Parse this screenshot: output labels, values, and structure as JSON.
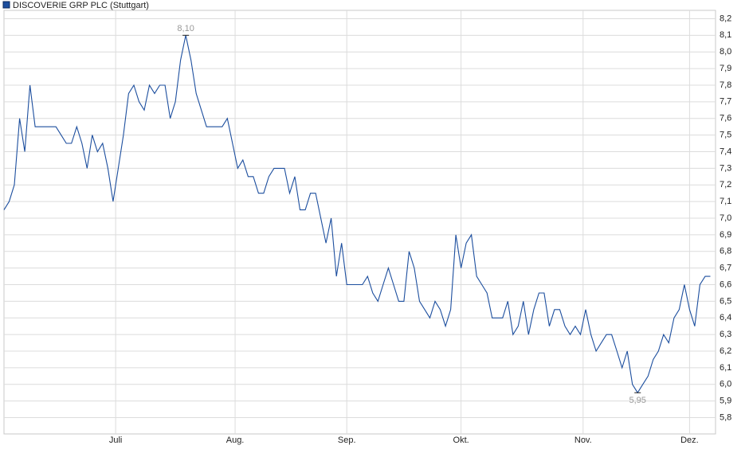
{
  "chart_data": {
    "type": "line",
    "series": [
      {
        "name": "DISCOVERIE GRP PLC (Stuttgart)",
        "color": "#1c4e9e",
        "values": [
          7.05,
          7.1,
          7.2,
          7.6,
          7.4,
          7.8,
          7.55,
          7.55,
          7.55,
          7.55,
          7.55,
          7.5,
          7.45,
          7.45,
          7.55,
          7.45,
          7.3,
          7.5,
          7.4,
          7.45,
          7.3,
          7.1,
          7.3,
          7.5,
          7.75,
          7.8,
          7.7,
          7.65,
          7.8,
          7.75,
          7.8,
          7.8,
          7.6,
          7.7,
          7.95,
          8.1,
          7.95,
          7.75,
          7.65,
          7.55,
          7.55,
          7.55,
          7.55,
          7.6,
          7.45,
          7.3,
          7.35,
          7.25,
          7.25,
          7.15,
          7.15,
          7.25,
          7.3,
          7.3,
          7.3,
          7.15,
          7.25,
          7.05,
          7.05,
          7.15,
          7.15,
          7.0,
          6.85,
          7.0,
          6.65,
          6.85,
          6.6,
          6.6,
          6.6,
          6.6,
          6.65,
          6.55,
          6.5,
          6.6,
          6.7,
          6.6,
          6.5,
          6.5,
          6.8,
          6.7,
          6.5,
          6.45,
          6.4,
          6.5,
          6.45,
          6.35,
          6.45,
          6.9,
          6.7,
          6.85,
          6.9,
          6.65,
          6.6,
          6.55,
          6.4,
          6.4,
          6.4,
          6.5,
          6.3,
          6.35,
          6.5,
          6.3,
          6.45,
          6.55,
          6.55,
          6.35,
          6.45,
          6.45,
          6.35,
          6.3,
          6.35,
          6.3,
          6.45,
          6.3,
          6.2,
          6.25,
          6.3,
          6.3,
          6.2,
          6.1,
          6.2,
          6.0,
          5.95,
          6.0,
          6.05,
          6.15,
          6.2,
          6.3,
          6.25,
          6.4,
          6.45,
          6.6,
          6.45,
          6.35,
          6.6,
          6.65,
          6.65
        ]
      }
    ],
    "annotations": [
      {
        "text": "8,10",
        "value": 8.1
      },
      {
        "text": "5,95",
        "value": 5.95
      }
    ],
    "xlim": [
      0,
      137
    ],
    "xticks": [
      {
        "value": 21.5,
        "label": "Juli"
      },
      {
        "value": 44.5,
        "label": "Aug."
      },
      {
        "value": 66,
        "label": "Sep."
      },
      {
        "value": 88,
        "label": "Okt."
      },
      {
        "value": 111.5,
        "label": "Nov."
      },
      {
        "value": 132,
        "label": "Dez."
      }
    ],
    "ylim": [
      5.75,
      8.25
    ],
    "yticks": [
      {
        "value": 5.8,
        "label": "5,8"
      },
      {
        "value": 5.9,
        "label": "5,9"
      },
      {
        "value": 6.0,
        "label": "6,0"
      },
      {
        "value": 6.1,
        "label": "6,1"
      },
      {
        "value": 6.2,
        "label": "6,2"
      },
      {
        "value": 6.3,
        "label": "6,3"
      },
      {
        "value": 6.4,
        "label": "6,4"
      },
      {
        "value": 6.5,
        "label": "6,5"
      },
      {
        "value": 6.6,
        "label": "6,6"
      },
      {
        "value": 6.7,
        "label": "6,7"
      },
      {
        "value": 6.8,
        "label": "6,8"
      },
      {
        "value": 6.9,
        "label": "6,9"
      },
      {
        "value": 7.0,
        "label": "7,0"
      },
      {
        "value": 7.1,
        "label": "7,1"
      },
      {
        "value": 7.2,
        "label": "7,2"
      },
      {
        "value": 7.3,
        "label": "7,3"
      },
      {
        "value": 7.4,
        "label": "7,4"
      },
      {
        "value": 7.5,
        "label": "7,5"
      },
      {
        "value": 7.6,
        "label": "7,6"
      },
      {
        "value": 7.7,
        "label": "7,7"
      },
      {
        "value": 7.8,
        "label": "7,8"
      },
      {
        "value": 7.9,
        "label": "7,9"
      },
      {
        "value": 8.0,
        "label": "8,0"
      },
      {
        "value": 8.1,
        "label": "8,1"
      },
      {
        "value": 8.2,
        "label": "8,2"
      }
    ],
    "grid": true
  }
}
